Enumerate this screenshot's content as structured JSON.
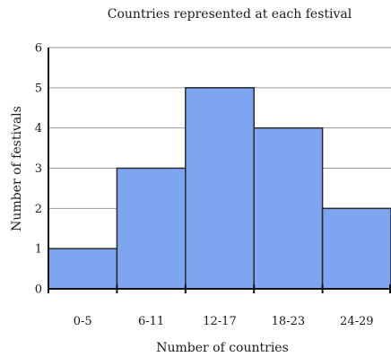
{
  "chart_data": {
    "type": "bar",
    "title": "Countries represented at each festival",
    "xlabel": "Number of countries",
    "ylabel": "Number of festivals",
    "categories": [
      "0-5",
      "6-11",
      "12-17",
      "18-23",
      "24-29"
    ],
    "values": [
      1,
      3,
      5,
      4,
      2
    ],
    "ylim": [
      0,
      6
    ],
    "yticks": [
      "0",
      "1",
      "2",
      "3",
      "4",
      "5",
      "6"
    ],
    "grid": true,
    "bar_color": "#7ea6f0",
    "bar_edge_color": "#2a2a2a"
  }
}
